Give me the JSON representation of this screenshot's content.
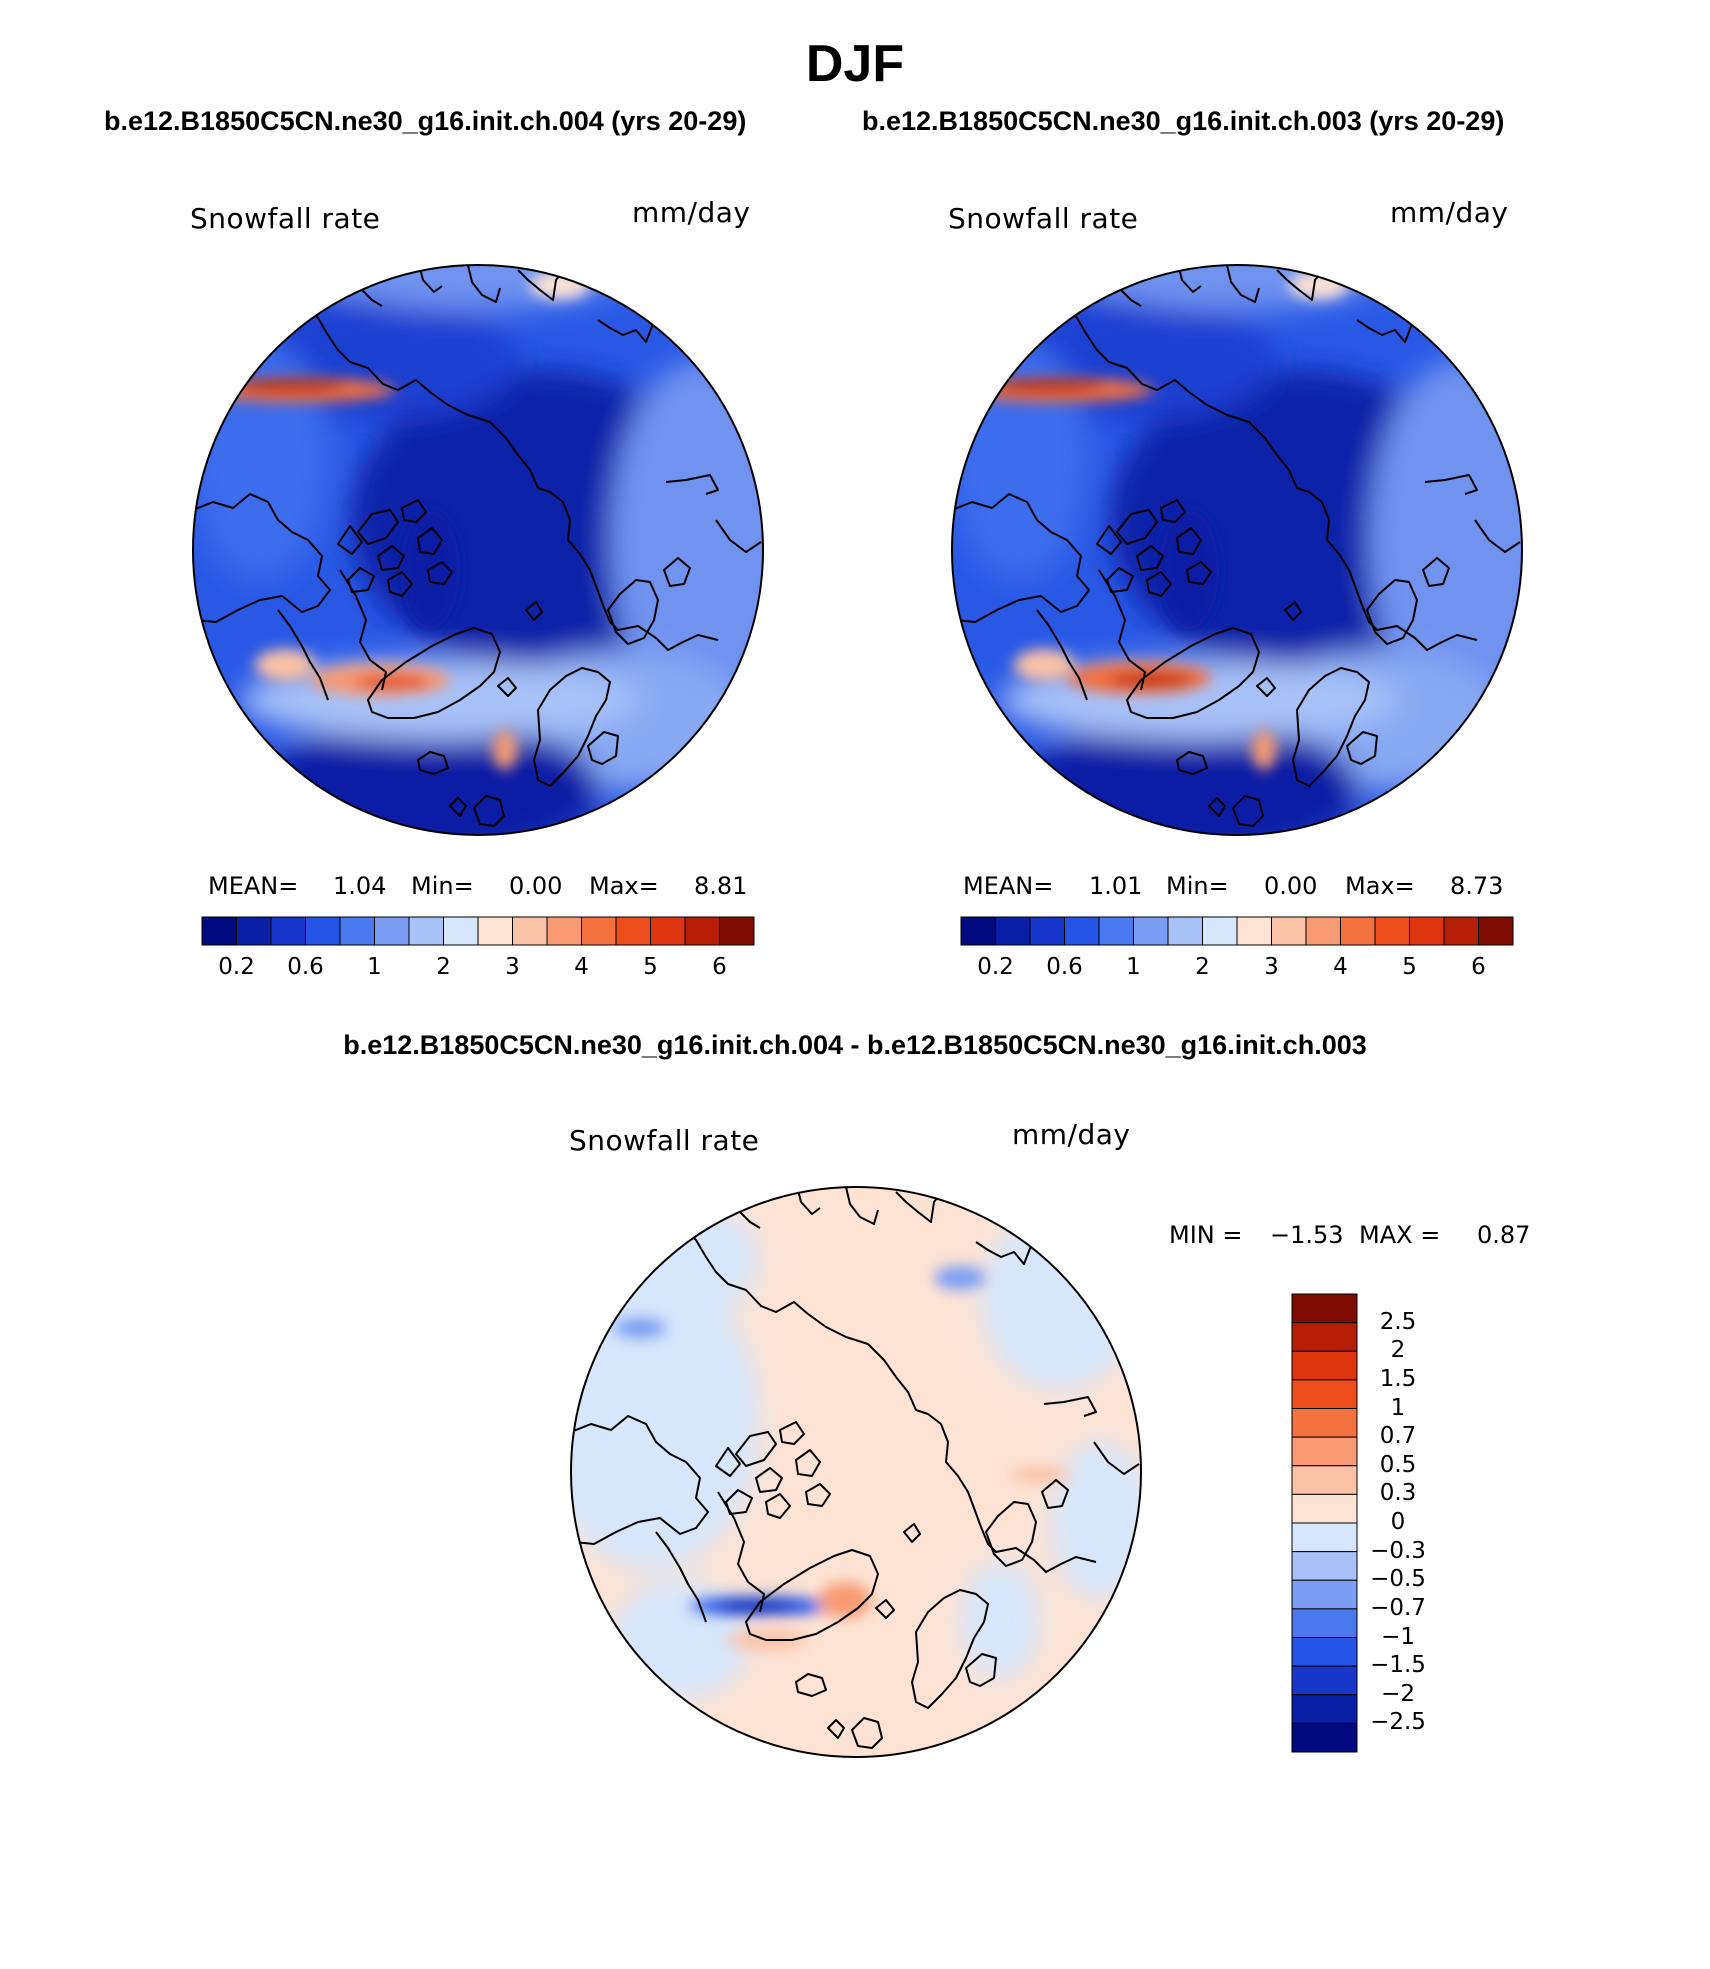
{
  "header": {
    "season": "DJF",
    "case_a_title": "b.e12.B1850C5CN.ne30_g16.init.ch.004 (yrs 20-29)",
    "case_b_title": "b.e12.B1850C5CN.ne30_g16.init.ch.003 (yrs 20-29)",
    "diff_title": "b.e12.B1850C5CN.ne30_g16.init.ch.004 - b.e12.B1850C5CN.ne30_g16.init.ch.003"
  },
  "panels": [
    {
      "variable": "Snowfall rate",
      "units": "mm/day",
      "mean_label": "MEAN=",
      "mean": "1.04",
      "min_label": "Min=",
      "min": "0.00",
      "max_label": "Max=",
      "max": "8.81",
      "colorbar_ticks": [
        "0.2",
        "0.6",
        "1",
        "2",
        "3",
        "4",
        "5",
        "6"
      ]
    },
    {
      "variable": "Snowfall rate",
      "units": "mm/day",
      "mean_label": "MEAN=",
      "mean": "1.01",
      "min_label": "Min=",
      "min": "0.00",
      "max_label": "Max=",
      "max": "8.73",
      "colorbar_ticks": [
        "0.2",
        "0.6",
        "1",
        "2",
        "3",
        "4",
        "5",
        "6"
      ]
    }
  ],
  "difference": {
    "variable": "Snowfall rate",
    "units": "mm/day",
    "min_label": "MIN =",
    "min": "−1.53",
    "max_label": "MAX =",
    "max": "0.87",
    "colorbar_ticks": [
      "2.5",
      "2",
      "1.5",
      "1",
      "0.7",
      "0.5",
      "0.3",
      "0",
      "−0.3",
      "−0.5",
      "−0.7",
      "−1",
      "−1.5",
      "−2",
      "−2.5"
    ]
  },
  "colors": {
    "abs_scale": [
      "#00097d",
      "#0a1fa5",
      "#1637c9",
      "#2654e6",
      "#4a78ef",
      "#7b9df3",
      "#a8c1f7",
      "#d6e6fb",
      "#fde3d4",
      "#fac2a6",
      "#f79a73",
      "#f3703f",
      "#ee4d1c",
      "#dd3510",
      "#b51f06",
      "#7f0c00"
    ],
    "diff_scale": [
      "#7f0c00",
      "#b51f06",
      "#dd3510",
      "#ee4d1c",
      "#f3703f",
      "#f79a73",
      "#fac2a6",
      "#fde3d4",
      "#d6e6fb",
      "#a8c1f7",
      "#7b9df3",
      "#4a78ef",
      "#2654e6",
      "#1637c9",
      "#0a1fa5",
      "#00097d"
    ]
  }
}
